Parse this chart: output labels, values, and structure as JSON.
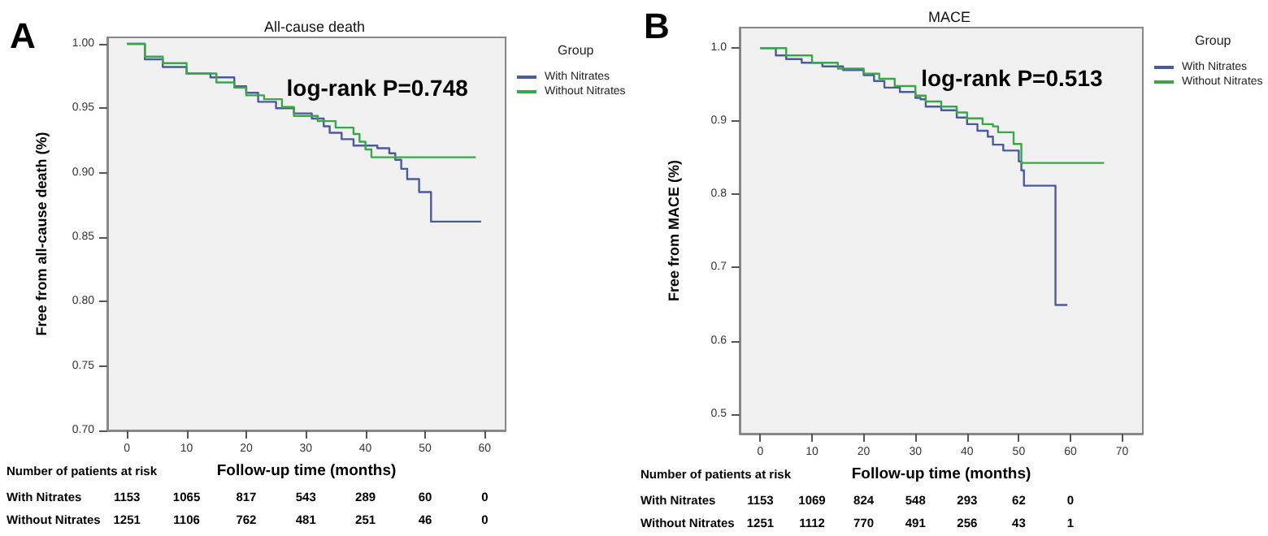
{
  "chart_data": [
    {
      "type": "step",
      "title": "All-cause death",
      "xlabel": "Follow-up time (months)",
      "ylabel": "Free from all-cause death (%)",
      "legend_title": "Group",
      "legend": "right",
      "grid": false,
      "xlim": [
        -3.3,
        63.5
      ],
      "xticks": [
        0,
        10,
        20,
        30,
        40,
        50,
        60
      ],
      "ylim": [
        0.7,
        1.005
      ],
      "yticks": [
        {
          "value": 0.7,
          "label": "0.70"
        },
        {
          "value": 0.75,
          "label": "0.75"
        },
        {
          "value": 0.8,
          "label": "0.80"
        },
        {
          "value": 0.85,
          "label": "0.85"
        },
        {
          "value": 0.9,
          "label": "0.90"
        },
        {
          "value": 0.95,
          "label": "0.95"
        },
        {
          "value": 1.0,
          "label": "1.00"
        }
      ],
      "series": [
        {
          "name": "With Nitrates",
          "color": "#4a5a9c",
          "x": [
            0,
            3,
            6,
            10,
            14,
            18,
            20,
            22,
            25,
            28,
            31,
            33,
            34,
            36,
            38,
            42,
            44,
            45,
            46,
            47,
            49,
            51,
            59.4
          ],
          "values": [
            1.0,
            0.988,
            0.982,
            0.977,
            0.974,
            0.967,
            0.962,
            0.955,
            0.95,
            0.946,
            0.942,
            0.936,
            0.931,
            0.926,
            0.921,
            0.919,
            0.915,
            0.91,
            0.903,
            0.895,
            0.885,
            0.862,
            0.862
          ]
        },
        {
          "name": "Without Nitrates",
          "color": "#3aa64a",
          "x": [
            0,
            3,
            6,
            10,
            15,
            18,
            20,
            23,
            26,
            28,
            32,
            35,
            38,
            39,
            40,
            41,
            58.5
          ],
          "values": [
            1.0,
            0.99,
            0.985,
            0.977,
            0.97,
            0.966,
            0.96,
            0.957,
            0.951,
            0.944,
            0.94,
            0.935,
            0.93,
            0.924,
            0.918,
            0.912,
            0.912
          ]
        }
      ],
      "annotations": [
        "A",
        "log-rank P=0.748",
        "Number of patients at risk",
        "With Nitrates",
        "1153",
        "1065",
        "817",
        "543",
        "289",
        "60",
        "0",
        "Without Nitrates",
        "1251",
        "1106",
        "762",
        "481",
        "251",
        "46",
        "0"
      ]
    },
    {
      "type": "step",
      "title": "MACE",
      "xlabel": "Follow-up time (months)",
      "ylabel": "Free from MACE (%)",
      "legend_title": "Group",
      "legend": "right",
      "grid": false,
      "xlim": [
        -4,
        74
      ],
      "xticks": [
        0,
        10,
        20,
        30,
        40,
        50,
        60,
        70
      ],
      "ylim": [
        0.473,
        1.028
      ],
      "yticks": [
        {
          "value": 0.5,
          "label": "0.5"
        },
        {
          "value": 0.6,
          "label": "0.6"
        },
        {
          "value": 0.7,
          "label": "0.7"
        },
        {
          "value": 0.8,
          "label": "0.8"
        },
        {
          "value": 0.9,
          "label": "0.9"
        },
        {
          "value": 1.0,
          "label": "1.0"
        }
      ],
      "series": [
        {
          "name": "With Nitrates",
          "color": "#4a5a9c",
          "x": [
            0,
            3,
            5,
            8,
            12,
            16,
            20,
            22,
            24,
            27,
            30,
            31,
            32,
            35,
            38,
            40,
            42,
            44,
            45,
            47,
            50,
            50.5,
            51,
            57.1,
            59.4
          ],
          "values": [
            1.0,
            0.99,
            0.985,
            0.98,
            0.975,
            0.97,
            0.963,
            0.955,
            0.946,
            0.94,
            0.932,
            0.93,
            0.92,
            0.915,
            0.905,
            0.896,
            0.887,
            0.879,
            0.868,
            0.86,
            0.845,
            0.833,
            0.812,
            0.649,
            0.649
          ]
        },
        {
          "name": "Without Nitrates",
          "color": "#3aa64a",
          "x": [
            0,
            5,
            10,
            15,
            20,
            23,
            26,
            30,
            32,
            35,
            38,
            40,
            43,
            45,
            46,
            49,
            50.5,
            66.5
          ],
          "values": [
            1.0,
            0.99,
            0.98,
            0.972,
            0.965,
            0.958,
            0.948,
            0.935,
            0.927,
            0.92,
            0.912,
            0.904,
            0.896,
            0.893,
            0.885,
            0.869,
            0.843,
            0.843
          ]
        }
      ],
      "annotations": [
        "B",
        "log-rank P=0.513",
        "Number of patients at risk",
        "With Nitrates",
        "1153",
        "1069",
        "824",
        "548",
        "293",
        "62",
        "0",
        "Without Nitrates",
        "1251",
        "1112",
        "770",
        "491",
        "256",
        "43",
        "1"
      ]
    }
  ]
}
